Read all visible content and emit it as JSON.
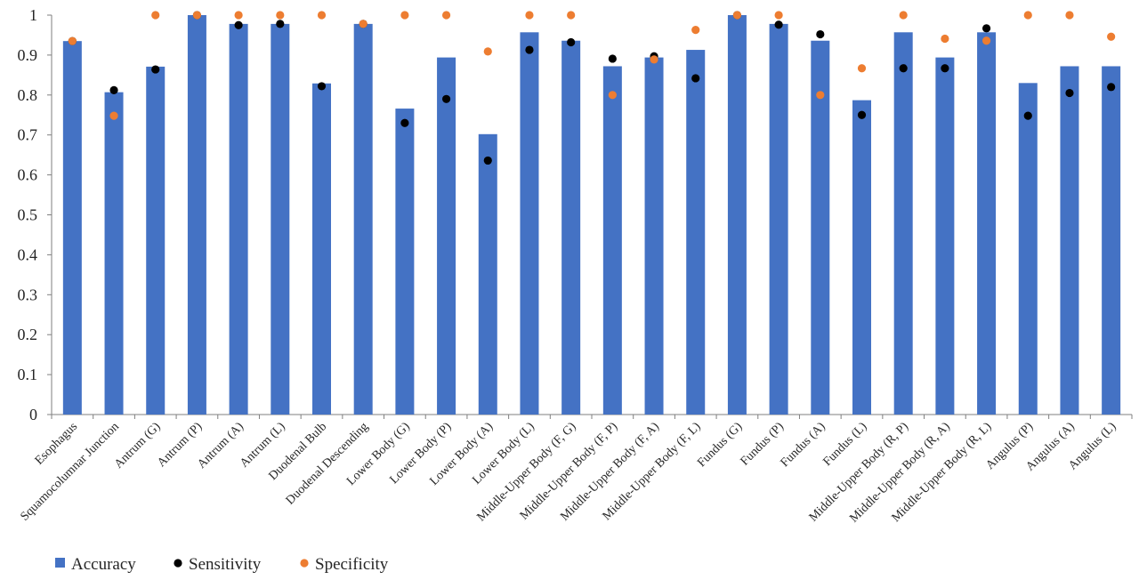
{
  "chart_data": {
    "type": "bar",
    "categories": [
      "Esophagus",
      "Squamocolumnar Junction",
      "Antrum (G)",
      "Antrum (P)",
      "Antrum (A)",
      "Antrum (L)",
      "Duodenal Bulb",
      "Duodenal Descending",
      "Lower Body (G)",
      "Lower Body (P)",
      "Lower Body (A)",
      "Lower Body (L)",
      "Middle-Upper Body (F, G)",
      "Middle-Upper Body (F, P)",
      "Middle-Upper Body (F, A)",
      "Middle-Upper Body (F, L)",
      "Fundus (G)",
      "Fundus (P)",
      "Fundus (A)",
      "Fundus (L)",
      "Middle-Upper Body (R, P)",
      "Middle-Upper Body (R, A)",
      "Middle-Upper Body (R, L)",
      "Angulus (P)",
      "Angulus (A)",
      "Angulus (L)"
    ],
    "series": [
      {
        "name": "Accuracy",
        "type": "bar",
        "color": "#4472C4",
        "values": [
          0.935,
          0.807,
          0.871,
          1.0,
          0.978,
          0.978,
          0.829,
          0.978,
          0.766,
          0.894,
          0.702,
          0.957,
          0.936,
          0.872,
          0.894,
          0.913,
          1.0,
          0.978,
          0.936,
          0.787,
          0.957,
          0.894,
          0.957,
          0.83,
          0.872,
          0.872
        ]
      },
      {
        "name": "Sensitivity",
        "type": "scatter",
        "color": "#000000",
        "values": [
          0.935,
          0.812,
          0.864,
          1.0,
          0.975,
          0.978,
          0.822,
          0.978,
          0.73,
          0.79,
          0.636,
          0.913,
          0.932,
          0.891,
          0.897,
          0.842,
          1.0,
          0.976,
          0.952,
          0.75,
          0.867,
          0.867,
          0.967,
          0.748,
          0.805,
          0.82
        ]
      },
      {
        "name": "Specificity",
        "type": "scatter",
        "color": "#ED7D31",
        "values": [
          0.935,
          0.748,
          1.0,
          1.0,
          1.0,
          1.0,
          1.0,
          0.978,
          1.0,
          1.0,
          0.909,
          1.0,
          1.0,
          0.8,
          0.889,
          0.963,
          1.0,
          1.0,
          0.8,
          0.867,
          1.0,
          0.941,
          0.936,
          1.0,
          1.0,
          0.946
        ]
      }
    ],
    "ylim": [
      0,
      1
    ],
    "yticks": [
      "0",
      "0.1",
      "0.2",
      "0.3",
      "0.4",
      "0.5",
      "0.6",
      "0.7",
      "0.8",
      "0.9",
      "1"
    ],
    "grid": false,
    "legend_position": "bottom-left",
    "title": "",
    "xlabel": "",
    "ylabel": ""
  }
}
